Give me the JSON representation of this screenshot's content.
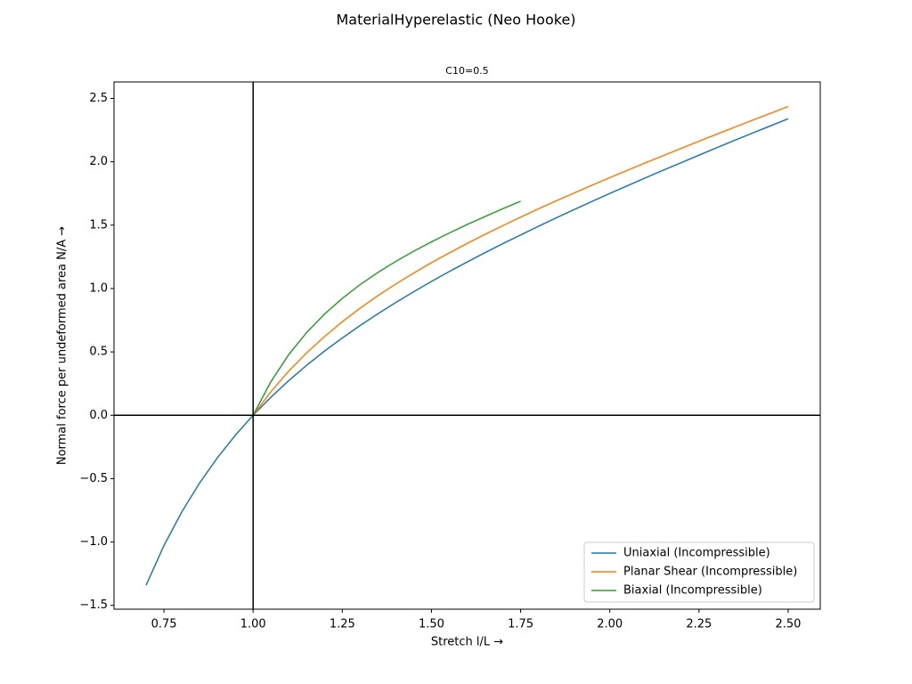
{
  "chart_data": {
    "type": "line",
    "title": "MaterialHyperelastic (Neo Hooke)",
    "subtitle": "C10=0.5",
    "xlabel": "Stretch l/L  →",
    "ylabel": "Normal force per undeformed area N/A  →",
    "xlim": [
      0.61,
      2.59
    ],
    "ylim": [
      -1.53,
      2.63
    ],
    "xticks": [
      {
        "value": 0.75,
        "label": "0.75"
      },
      {
        "value": 1,
        "label": "1.00"
      },
      {
        "value": 1.25,
        "label": "1.25"
      },
      {
        "value": 1.5,
        "label": "1.50"
      },
      {
        "value": 1.75,
        "label": "1.75"
      },
      {
        "value": 2,
        "label": "2.00"
      },
      {
        "value": 2.25,
        "label": "2.25"
      },
      {
        "value": 2.5,
        "label": "2.50"
      }
    ],
    "yticks": [
      {
        "value": -1.5,
        "label": "−1.5"
      },
      {
        "value": -1,
        "label": "−1.0"
      },
      {
        "value": -0.5,
        "label": "−0.5"
      },
      {
        "value": 0,
        "label": "0.0"
      },
      0.5,
      {
        "value": 1,
        "label": "1.0"
      },
      1.5,
      {
        "value": 2,
        "label": "2.0"
      },
      2.5
    ],
    "axhline": 0,
    "axvline": 1,
    "legend": "lower right",
    "grid": false,
    "series": [
      {
        "name": "Uniaxial (Incompressible)",
        "color": "#1f77b4",
        "x": [
          0.7,
          0.75,
          0.8,
          0.85,
          0.9,
          0.95,
          1,
          1.05,
          1.1,
          1.15,
          1.2,
          1.25,
          1.3,
          1.35,
          1.4,
          1.45,
          1.5,
          1.55,
          1.6,
          1.65,
          1.7,
          1.75,
          1.8,
          1.85,
          1.9,
          1.95,
          2,
          2.05,
          2.1,
          2.15,
          2.2,
          2.25,
          2.3,
          2.35,
          2.4,
          2.45,
          2.5
        ],
        "values": [
          -1.341,
          -1.028,
          -0.763,
          -0.534,
          -0.335,
          -0.158,
          0,
          0.143,
          0.274,
          0.394,
          0.506,
          0.61,
          0.708,
          0.801,
          0.89,
          0.974,
          1.056,
          1.134,
          1.209,
          1.283,
          1.354,
          1.423,
          1.491,
          1.558,
          1.623,
          1.687,
          1.75,
          1.812,
          1.873,
          1.934,
          1.993,
          2.052,
          2.111,
          2.169,
          2.226,
          2.283,
          2.34
        ]
      },
      {
        "name": "Planar Shear (Incompressible)",
        "color": "#ff7f0e",
        "x": [
          1,
          1.05,
          1.1,
          1.15,
          1.2,
          1.25,
          1.3,
          1.35,
          1.4,
          1.45,
          1.5,
          1.55,
          1.6,
          1.65,
          1.7,
          1.75,
          1.8,
          1.85,
          1.9,
          1.95,
          2,
          2.05,
          2.1,
          2.15,
          2.2,
          2.25,
          2.3,
          2.35,
          2.4,
          2.45,
          2.5
        ],
        "values": [
          0,
          0.186,
          0.349,
          0.492,
          0.621,
          0.738,
          0.845,
          0.944,
          1.036,
          1.122,
          1.204,
          1.281,
          1.356,
          1.427,
          1.496,
          1.563,
          1.629,
          1.692,
          1.754,
          1.815,
          1.875,
          1.934,
          1.992,
          2.049,
          2.106,
          2.162,
          2.218,
          2.273,
          2.328,
          2.382,
          2.436
        ]
      },
      {
        "name": "Biaxial (Incompressible)",
        "color": "#2ca02c",
        "x": [
          1,
          1.05,
          1.1,
          1.15,
          1.2,
          1.25,
          1.3,
          1.35,
          1.4,
          1.45,
          1.5,
          1.55,
          1.6,
          1.65,
          1.7,
          1.75
        ],
        "values": [
          0,
          0.266,
          0.479,
          0.653,
          0.798,
          0.922,
          1.031,
          1.127,
          1.214,
          1.294,
          1.368,
          1.438,
          1.505,
          1.568,
          1.63,
          1.689
        ]
      }
    ]
  }
}
